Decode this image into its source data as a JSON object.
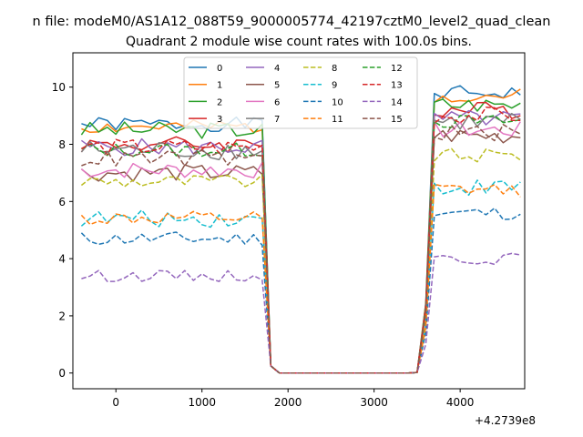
{
  "chart_data": {
    "type": "line",
    "suptitle": "n file: modeM0/AS1A12_088T59_9000005774_42197cztM0_level2_quad_clean",
    "title": "Quadrant 2 module wise count rates with 100.0s bins.",
    "xlabel": "",
    "ylabel": "",
    "x_offset_label": "+4.2739e8",
    "xlim": [
      -500,
      4750
    ],
    "ylim": [
      -0.55,
      11.2
    ],
    "xticks": [
      0,
      1000,
      2000,
      3000,
      4000
    ],
    "yticks": [
      0,
      2,
      4,
      6,
      8,
      10
    ],
    "grid": false,
    "legend": {
      "placement": "top-center",
      "columns": 4
    },
    "x": [
      -400,
      -300,
      -200,
      -100,
      0,
      100,
      200,
      300,
      400,
      500,
      600,
      700,
      800,
      900,
      1000,
      1100,
      1200,
      1300,
      1400,
      1500,
      1600,
      1700,
      1800,
      1900,
      2000,
      2100,
      2200,
      2300,
      2400,
      2500,
      2600,
      2700,
      2800,
      2900,
      3000,
      3100,
      3200,
      3300,
      3400,
      3500,
      3600,
      3700,
      3800,
      3900,
      4000,
      4100,
      4200,
      4300,
      4400,
      4500,
      4600,
      4700
    ],
    "series": [
      {
        "name": "0",
        "color": "#1f77b4",
        "dash": "solid",
        "high": 8.7,
        "low": 0.0,
        "post": 9.8,
        "amp": 0.25,
        "seed": 1
      },
      {
        "name": "1",
        "color": "#ff7f0e",
        "dash": "solid",
        "high": 8.6,
        "low": 0.0,
        "post": 9.7,
        "amp": 0.25,
        "seed": 2
      },
      {
        "name": "2",
        "color": "#2ca02c",
        "dash": "solid",
        "high": 8.5,
        "low": 0.0,
        "post": 9.4,
        "amp": 0.3,
        "seed": 3
      },
      {
        "name": "3",
        "color": "#d62728",
        "dash": "solid",
        "high": 8.0,
        "low": 0.0,
        "post": 9.2,
        "amp": 0.3,
        "seed": 4
      },
      {
        "name": "4",
        "color": "#9467bd",
        "dash": "solid",
        "high": 7.9,
        "low": 0.0,
        "post": 8.9,
        "amp": 0.3,
        "seed": 5
      },
      {
        "name": "5",
        "color": "#8c564b",
        "dash": "solid",
        "high": 7.0,
        "low": 0.0,
        "post": 8.3,
        "amp": 0.3,
        "seed": 6
      },
      {
        "name": "6",
        "color": "#e377c2",
        "dash": "solid",
        "high": 7.1,
        "low": 0.0,
        "post": 8.5,
        "amp": 0.3,
        "seed": 7
      },
      {
        "name": "7",
        "color": "#7f7f7f",
        "dash": "solid",
        "high": 7.8,
        "low": 0.0,
        "post": 8.8,
        "amp": 0.35,
        "seed": 8
      },
      {
        "name": "8",
        "color": "#bcbd22",
        "dash": "dashed",
        "high": 6.7,
        "low": 0.0,
        "post": 7.6,
        "amp": 0.25,
        "seed": 9
      },
      {
        "name": "9",
        "color": "#17becf",
        "dash": "dashed",
        "high": 5.4,
        "low": 0.0,
        "post": 6.5,
        "amp": 0.3,
        "seed": 10
      },
      {
        "name": "10",
        "color": "#1f77b4",
        "dash": "dashed",
        "high": 4.7,
        "low": 0.0,
        "post": 5.6,
        "amp": 0.25,
        "seed": 11
      },
      {
        "name": "11",
        "color": "#ff7f0e",
        "dash": "dashed",
        "high": 5.4,
        "low": 0.0,
        "post": 6.4,
        "amp": 0.25,
        "seed": 12
      },
      {
        "name": "12",
        "color": "#2ca02c",
        "dash": "dashed",
        "high": 7.8,
        "low": 0.0,
        "post": 8.8,
        "amp": 0.25,
        "seed": 13
      },
      {
        "name": "13",
        "color": "#d62728",
        "dash": "dashed",
        "high": 7.9,
        "low": 0.0,
        "post": 9.0,
        "amp": 0.3,
        "seed": 14
      },
      {
        "name": "14",
        "color": "#9467bd",
        "dash": "dashed",
        "high": 3.4,
        "low": 0.0,
        "post": 4.0,
        "amp": 0.2,
        "seed": 15
      },
      {
        "name": "15",
        "color": "#8c564b",
        "dash": "dashed",
        "high": 7.5,
        "low": 0.0,
        "post": 8.4,
        "amp": 0.3,
        "seed": 16
      }
    ]
  }
}
